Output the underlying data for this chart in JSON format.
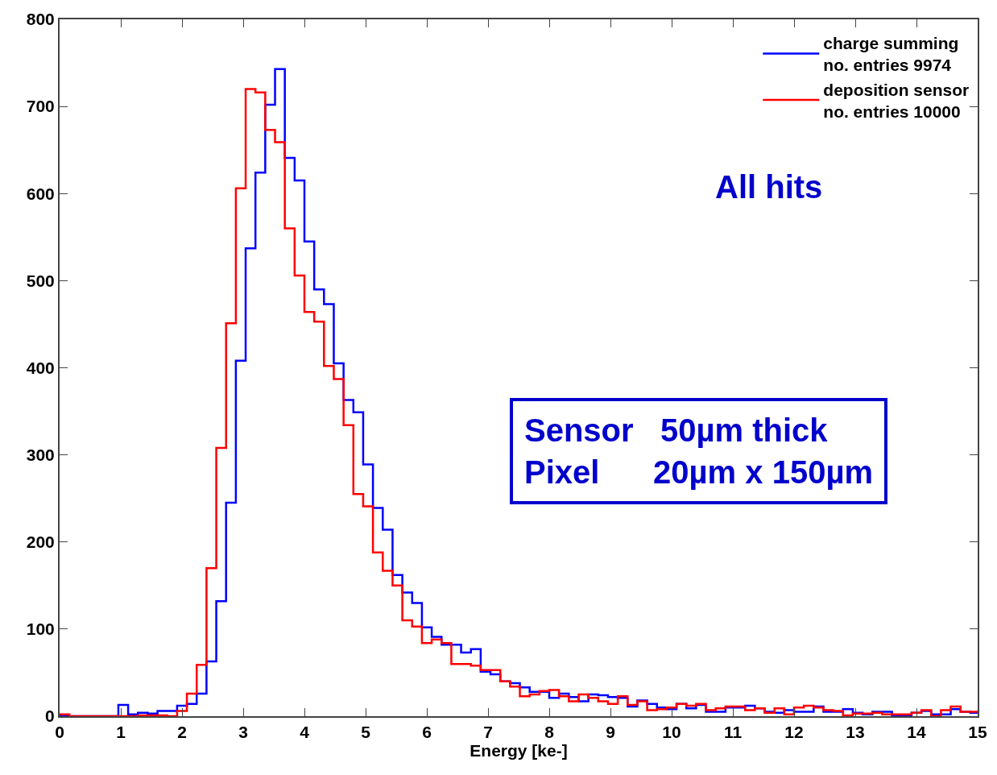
{
  "chart_data": {
    "type": "histogram",
    "xlabel": "Energy [ke-]",
    "bins": [
      0,
      0.16,
      0.32,
      0.48,
      0.64,
      0.8,
      0.96,
      1.12,
      1.28,
      1.44,
      1.6,
      1.76,
      1.92,
      2.08,
      2.24,
      2.4,
      2.56,
      2.72,
      2.88,
      3.04,
      3.2,
      3.36,
      3.52,
      3.68,
      3.84,
      4,
      4.16,
      4.32,
      4.48,
      4.64,
      4.8,
      4.96,
      5.12,
      5.28,
      5.44,
      5.6,
      5.76,
      5.92,
      6.08,
      6.24,
      6.4,
      6.56,
      6.72,
      6.88,
      7.04,
      7.2,
      7.36,
      7.52,
      7.68,
      7.84,
      8,
      8.16,
      8.32,
      8.48,
      8.64,
      8.8,
      8.96,
      9.12,
      9.28,
      9.44,
      9.6,
      9.76,
      9.92,
      10.08,
      10.24,
      10.4,
      10.56,
      10.72,
      10.88,
      11.04,
      11.2,
      11.36,
      11.52,
      11.68,
      11.84,
      12,
      12.16,
      12.32,
      12.48,
      12.64,
      12.8,
      12.96,
      13.12,
      13.28,
      13.44,
      13.6,
      13.76,
      13.92,
      14.08,
      14.24,
      14.4,
      14.56,
      14.72,
      14.88,
      15
    ],
    "series": [
      {
        "name": "charge summing\nno. entries 9974",
        "color": "#0000ff",
        "values": [
          0,
          0,
          0,
          0,
          0,
          0,
          13,
          2,
          4,
          3,
          6,
          6,
          12,
          14,
          26,
          63,
          132,
          245,
          408,
          537,
          624,
          702,
          743,
          641,
          615,
          545,
          490,
          473,
          405,
          363,
          349,
          289,
          239,
          214,
          162,
          142,
          130,
          102,
          91,
          82,
          82,
          73,
          77,
          51,
          48,
          40,
          38,
          33,
          28,
          28,
          21,
          26,
          22,
          17,
          25,
          24,
          22,
          21,
          11,
          18,
          14,
          10,
          8,
          14,
          9,
          13,
          5,
          5,
          10,
          10,
          12,
          9,
          5,
          4,
          7,
          5,
          5,
          11,
          5,
          5,
          8,
          4,
          2,
          5,
          5,
          0,
          1,
          4,
          6,
          2,
          2,
          8,
          5,
          4
        ]
      },
      {
        "name": "deposition sensor\nno. entries 10000",
        "color": "#ff0000",
        "values": [
          2,
          0,
          0,
          0,
          0,
          0,
          0,
          0,
          1,
          1,
          1,
          0,
          6,
          26,
          59,
          170,
          308,
          451,
          606,
          720,
          716,
          673,
          659,
          560,
          506,
          464,
          453,
          402,
          387,
          334,
          255,
          241,
          188,
          167,
          150,
          110,
          103,
          84,
          88,
          84,
          60,
          60,
          58,
          53,
          53,
          40,
          34,
          23,
          25,
          29,
          30,
          23,
          17,
          25,
          21,
          17,
          14,
          23,
          13,
          17,
          7,
          8,
          10,
          14,
          12,
          14,
          7,
          9,
          11,
          11,
          7,
          9,
          4,
          9,
          2,
          10,
          12,
          10,
          7,
          6,
          1,
          3,
          3,
          4,
          2,
          2,
          2,
          4,
          7,
          0,
          7,
          11,
          5,
          5
        ]
      }
    ],
    "xlim": [
      0,
      15
    ],
    "xticks": [
      0,
      1,
      2,
      3,
      4,
      5,
      6,
      7,
      8,
      9,
      10,
      11,
      12,
      13,
      14,
      15
    ],
    "ylim": [
      0,
      800
    ],
    "yticks": [
      0,
      100,
      200,
      300,
      400,
      500,
      600,
      700,
      800
    ],
    "legend": "top right",
    "line_style": "solid",
    "marker": "none",
    "annotations": [
      "All hits",
      "Sensor   50µm thick\nPixel      20µm x 150µm"
    ]
  }
}
